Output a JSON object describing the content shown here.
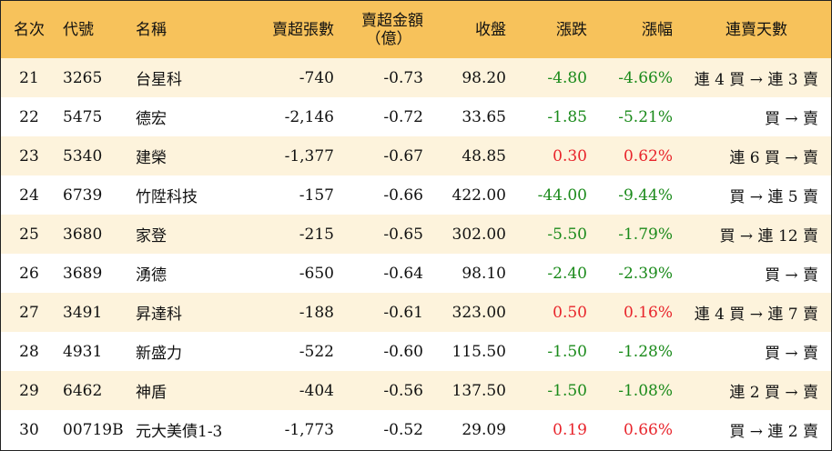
{
  "colors": {
    "header_bg": "#f7c25b",
    "stripe_bg": "#fdf3dc",
    "up": "#e8242b",
    "down": "#1a8a1a"
  },
  "headers": {
    "rank": "名次",
    "code": "代號",
    "name": "名稱",
    "sell_lots": "賣超張數",
    "sell_amount_line1": "賣超金額",
    "sell_amount_line2": "（億）",
    "close": "收盤",
    "change": "漲跌",
    "change_pct": "漲幅",
    "streak": "連賣天數"
  },
  "rows": [
    {
      "rank": "21",
      "code": "3265",
      "name": "台星科",
      "sell_lots": "-740",
      "sell_amount": "-0.73",
      "close": "98.20",
      "change": "-4.80",
      "change_pct": "-4.66%",
      "direction": "down",
      "streak": "連 4 買 → 連 3 賣"
    },
    {
      "rank": "22",
      "code": "5475",
      "name": "德宏",
      "sell_lots": "-2,146",
      "sell_amount": "-0.72",
      "close": "33.65",
      "change": "-1.85",
      "change_pct": "-5.21%",
      "direction": "down",
      "streak": "買 → 賣"
    },
    {
      "rank": "23",
      "code": "5340",
      "name": "建榮",
      "sell_lots": "-1,377",
      "sell_amount": "-0.67",
      "close": "48.85",
      "change": "0.30",
      "change_pct": "0.62%",
      "direction": "up",
      "streak": "連 6 買 → 賣"
    },
    {
      "rank": "24",
      "code": "6739",
      "name": "竹陞科技",
      "sell_lots": "-157",
      "sell_amount": "-0.66",
      "close": "422.00",
      "change": "-44.00",
      "change_pct": "-9.44%",
      "direction": "down",
      "streak": "買 → 連 5 賣"
    },
    {
      "rank": "25",
      "code": "3680",
      "name": "家登",
      "sell_lots": "-215",
      "sell_amount": "-0.65",
      "close": "302.00",
      "change": "-5.50",
      "change_pct": "-1.79%",
      "direction": "down",
      "streak": "買 → 連 12 賣"
    },
    {
      "rank": "26",
      "code": "3689",
      "name": "湧德",
      "sell_lots": "-650",
      "sell_amount": "-0.64",
      "close": "98.10",
      "change": "-2.40",
      "change_pct": "-2.39%",
      "direction": "down",
      "streak": "買 → 賣"
    },
    {
      "rank": "27",
      "code": "3491",
      "name": "昇達科",
      "sell_lots": "-188",
      "sell_amount": "-0.61",
      "close": "323.00",
      "change": "0.50",
      "change_pct": "0.16%",
      "direction": "up",
      "streak": "連 4 買 → 連 7 賣"
    },
    {
      "rank": "28",
      "code": "4931",
      "name": "新盛力",
      "sell_lots": "-522",
      "sell_amount": "-0.60",
      "close": "115.50",
      "change": "-1.50",
      "change_pct": "-1.28%",
      "direction": "down",
      "streak": "買 → 賣"
    },
    {
      "rank": "29",
      "code": "6462",
      "name": "神盾",
      "sell_lots": "-404",
      "sell_amount": "-0.56",
      "close": "137.50",
      "change": "-1.50",
      "change_pct": "-1.08%",
      "direction": "down",
      "streak": "連 2 買 → 賣"
    },
    {
      "rank": "30",
      "code": "00719B",
      "name": "元大美債1-3",
      "sell_lots": "-1,773",
      "sell_amount": "-0.52",
      "close": "29.09",
      "change": "0.19",
      "change_pct": "0.66%",
      "direction": "up",
      "streak": "買 → 連 2 賣"
    }
  ]
}
